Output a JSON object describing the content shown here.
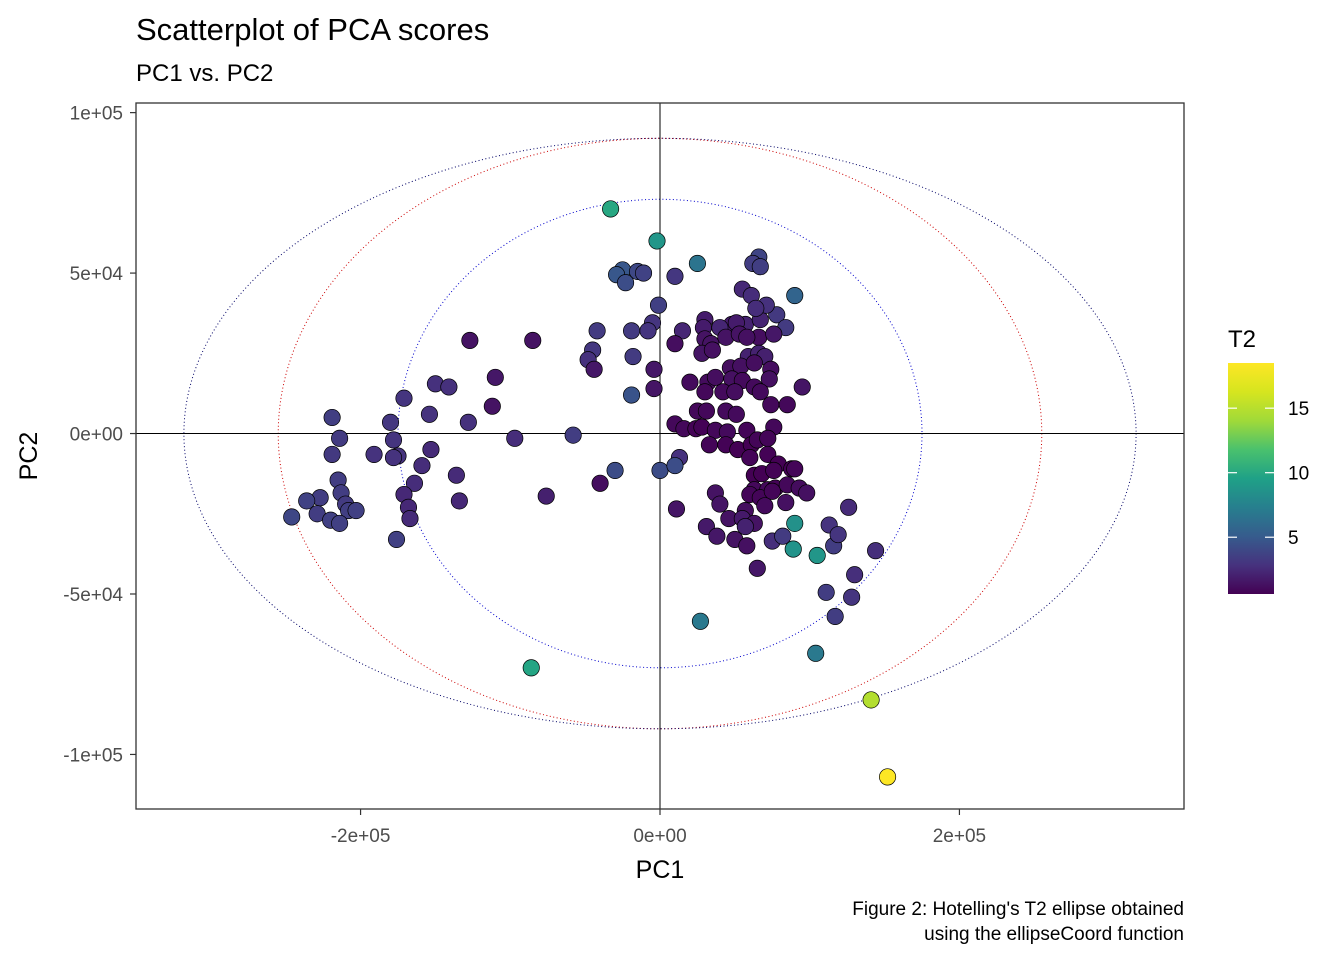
{
  "chart_data": {
    "type": "scatter",
    "title": "Scatterplot of PCA scores",
    "subtitle": "PC1 vs. PC2",
    "xlabel": "PC1",
    "ylabel": "PC2",
    "xlim": [
      -350000,
      350000
    ],
    "ylim": [
      -117000,
      103000
    ],
    "x_ticks": [
      -200000,
      0,
      200000
    ],
    "x_tick_labels": [
      "-2e+05",
      "0e+00",
      "2e+05"
    ],
    "y_ticks": [
      -100000,
      -50000,
      0,
      50000,
      100000
    ],
    "y_tick_labels": [
      "-1e+05",
      "-5e+04",
      "0e+00",
      "5e+04",
      "1e+05"
    ],
    "grid": false,
    "reference_lines": {
      "x": 0,
      "y": 0
    },
    "ellipses": [
      {
        "rx": 175000,
        "ry": 73000,
        "color": "#0000cc"
      },
      {
        "rx": 255000,
        "ry": 92000,
        "color": "#cc0000"
      },
      {
        "rx": 318000,
        "ry": 92000,
        "color": "#000066"
      }
    ],
    "legend": {
      "title": "T2",
      "position": "right",
      "min": 0.6,
      "max": 18.5,
      "ticks": [
        5,
        10,
        15
      ],
      "tick_labels": [
        "5",
        "10",
        "15"
      ]
    },
    "caption": [
      "Figure 2: Hotelling's T2 ellipse obtained",
      "using the ellipseCoord function"
    ],
    "points": [
      [
        -33000,
        70000,
        10.0
      ],
      [
        -2000,
        60000,
        8.8
      ],
      [
        25000,
        53000,
        6.6
      ],
      [
        66000,
        55000,
        3.8
      ],
      [
        62000,
        53000,
        3.4
      ],
      [
        67000,
        52000,
        3.5
      ],
      [
        -25000,
        51000,
        4.8
      ],
      [
        -15000,
        50500,
        4.0
      ],
      [
        -11000,
        50000,
        3.7
      ],
      [
        -29000,
        49500,
        4.8
      ],
      [
        10000,
        49000,
        3.1
      ],
      [
        -23000,
        47000,
        4.3
      ],
      [
        55000,
        45000,
        2.4
      ],
      [
        61000,
        43000,
        2.6
      ],
      [
        90000,
        43000,
        5.6
      ],
      [
        -1000,
        40000,
        3.6
      ],
      [
        -5000,
        34500,
        3.0
      ],
      [
        30000,
        35500,
        1.8
      ],
      [
        48000,
        34000,
        1.8
      ],
      [
        57000,
        34000,
        2.1
      ],
      [
        67000,
        35500,
        2.2
      ],
      [
        78000,
        37000,
        3.2
      ],
      [
        71000,
        40000,
        2.8
      ],
      [
        66000,
        30000,
        1.2
      ],
      [
        -8000,
        32000,
        3.0
      ],
      [
        -19000,
        32000,
        3.3
      ],
      [
        -42000,
        32000,
        3.3
      ],
      [
        15000,
        32000,
        2.3
      ],
      [
        29000,
        33000,
        1.8
      ],
      [
        40000,
        33000,
        2.3
      ],
      [
        51000,
        34500,
        1.8
      ],
      [
        64000,
        39000,
        2.6
      ],
      [
        84000,
        33000,
        3.3
      ],
      [
        30000,
        29500,
        1.4
      ],
      [
        34000,
        28000,
        1.4
      ],
      [
        44000,
        30000,
        1.4
      ],
      [
        53000,
        31000,
        1.4
      ],
      [
        58000,
        30000,
        1.3
      ],
      [
        76000,
        31000,
        1.6
      ],
      [
        10000,
        28000,
        1.2
      ],
      [
        -45000,
        26000,
        3.1
      ],
      [
        -48000,
        23000,
        2.8
      ],
      [
        -127000,
        29000,
        1.4
      ],
      [
        -85000,
        29000,
        1.4
      ],
      [
        28000,
        25000,
        1.5
      ],
      [
        35000,
        26000,
        1.3
      ],
      [
        59000,
        24000,
        2.1
      ],
      [
        66000,
        25000,
        2.1
      ],
      [
        70000,
        24000,
        2.0
      ],
      [
        -18000,
        24000,
        3.3
      ],
      [
        -44000,
        20000,
        1.6
      ],
      [
        -4000,
        20000,
        1.6
      ],
      [
        47000,
        20500,
        1.2
      ],
      [
        54000,
        21000,
        1.3
      ],
      [
        63000,
        22000,
        1.2
      ],
      [
        74000,
        20000,
        1.2
      ],
      [
        -110000,
        17500,
        1.6
      ],
      [
        -150000,
        15500,
        2.8
      ],
      [
        -141000,
        14500,
        2.8
      ],
      [
        -4000,
        14000,
        1.5
      ],
      [
        20000,
        16000,
        1.0
      ],
      [
        32000,
        16000,
        1.1
      ],
      [
        37000,
        17500,
        1.2
      ],
      [
        48000,
        17000,
        1.3
      ],
      [
        55000,
        16500,
        1.0
      ],
      [
        73000,
        17000,
        1.3
      ],
      [
        95000,
        14500,
        1.5
      ],
      [
        -19000,
        12000,
        4.6
      ],
      [
        -171000,
        11000,
        3.0
      ],
      [
        30000,
        13000,
        0.9
      ],
      [
        42000,
        13000,
        1.0
      ],
      [
        50000,
        13000,
        1.2
      ],
      [
        63000,
        14500,
        1.0
      ],
      [
        67000,
        13000,
        1.0
      ],
      [
        74000,
        9000,
        0.9
      ],
      [
        85000,
        9000,
        0.9
      ],
      [
        -112000,
        8500,
        1.4
      ],
      [
        -154000,
        6000,
        2.9
      ],
      [
        25000,
        7000,
        0.9
      ],
      [
        31000,
        7000,
        0.9
      ],
      [
        44000,
        7000,
        1.0
      ],
      [
        51000,
        6000,
        1.0
      ],
      [
        -219000,
        5000,
        3.5
      ],
      [
        -180000,
        3500,
        3.1
      ],
      [
        10000,
        3000,
        0.9
      ],
      [
        16000,
        1500,
        0.9
      ],
      [
        24000,
        1500,
        0.7
      ],
      [
        28000,
        2000,
        0.7
      ],
      [
        37000,
        1000,
        0.9
      ],
      [
        45000,
        500,
        1.0
      ],
      [
        58000,
        1000,
        0.8
      ],
      [
        76000,
        2000,
        0.9
      ],
      [
        -128000,
        3500,
        2.8
      ],
      [
        -97000,
        -1500,
        2.6
      ],
      [
        -58000,
        -500,
        3.4
      ],
      [
        -214000,
        -1500,
        3.3
      ],
      [
        -178000,
        -2000,
        3.0
      ],
      [
        33000,
        -3500,
        0.8
      ],
      [
        44000,
        -3500,
        0.7
      ],
      [
        52000,
        -5000,
        0.6
      ],
      [
        61000,
        -3500,
        0.6
      ],
      [
        65000,
        -2000,
        0.8
      ],
      [
        72000,
        -1500,
        0.8
      ],
      [
        -219000,
        -6500,
        3.2
      ],
      [
        -191000,
        -6500,
        2.9
      ],
      [
        -175000,
        -7000,
        2.9
      ],
      [
        -178000,
        -7500,
        2.9
      ],
      [
        -153000,
        -5000,
        2.5
      ],
      [
        13000,
        -7500,
        2.8
      ],
      [
        60000,
        -7500,
        0.8
      ],
      [
        72000,
        -6500,
        0.7
      ],
      [
        79000,
        -9500,
        0.6
      ],
      [
        88000,
        -11000,
        0.6
      ],
      [
        -159000,
        -10000,
        2.6
      ],
      [
        -136000,
        -13000,
        2.5
      ],
      [
        0,
        -11500,
        4.2
      ],
      [
        -30000,
        -11500,
        4.2
      ],
      [
        10000,
        -10000,
        4.3
      ],
      [
        63000,
        -13000,
        0.6
      ],
      [
        68000,
        -12500,
        0.6
      ],
      [
        76000,
        -11500,
        0.7
      ],
      [
        90000,
        -11000,
        0.8
      ],
      [
        -215000,
        -14500,
        3.4
      ],
      [
        -213000,
        -18500,
        3.4
      ],
      [
        -164000,
        -15500,
        2.6
      ],
      [
        -40000,
        -15500,
        1.2
      ],
      [
        63000,
        -17500,
        0.9
      ],
      [
        72000,
        -17500,
        0.9
      ],
      [
        77000,
        -17000,
        0.7
      ],
      [
        85000,
        -16000,
        0.9
      ],
      [
        93000,
        -17000,
        1.1
      ],
      [
        -171000,
        -19000,
        2.4
      ],
      [
        -76000,
        -19500,
        2.0
      ],
      [
        -227000,
        -20000,
        3.4
      ],
      [
        -210000,
        -22000,
        3.3
      ],
      [
        37000,
        -18500,
        1.4
      ],
      [
        60000,
        -19000,
        0.8
      ],
      [
        67000,
        -20000,
        0.8
      ],
      [
        75000,
        -18000,
        0.8
      ],
      [
        98000,
        -18500,
        1.3
      ],
      [
        -168000,
        -23000,
        2.4
      ],
      [
        -134000,
        -21000,
        2.4
      ],
      [
        -208000,
        -24000,
        3.5
      ],
      [
        -203000,
        -24000,
        3.6
      ],
      [
        -236000,
        -21000,
        3.7
      ],
      [
        -246000,
        -26000,
        3.9
      ],
      [
        -229000,
        -25000,
        3.4
      ],
      [
        -220000,
        -27000,
        3.6
      ],
      [
        -214000,
        -28000,
        3.6
      ],
      [
        -167000,
        -26500,
        2.5
      ],
      [
        40000,
        -22000,
        1.5
      ],
      [
        57000,
        -24000,
        1.2
      ],
      [
        70000,
        -22500,
        1.0
      ],
      [
        84000,
        -21500,
        1.3
      ],
      [
        11000,
        -23500,
        1.5
      ],
      [
        -176000,
        -33000,
        3.6
      ],
      [
        31000,
        -29000,
        1.7
      ],
      [
        46000,
        -26500,
        1.4
      ],
      [
        55000,
        -26500,
        1.7
      ],
      [
        63000,
        -28000,
        1.4
      ],
      [
        57000,
        -29000,
        2.1
      ],
      [
        90000,
        -28000,
        8.5
      ],
      [
        113000,
        -28500,
        2.9
      ],
      [
        126000,
        -23000,
        2.5
      ],
      [
        38000,
        -32000,
        1.6
      ],
      [
        50000,
        -33000,
        1.4
      ],
      [
        58000,
        -35000,
        1.3
      ],
      [
        75000,
        -33500,
        2.7
      ],
      [
        82000,
        -32000,
        3.3
      ],
      [
        89000,
        -36000,
        8.6
      ],
      [
        105000,
        -38000,
        8.8
      ],
      [
        116000,
        -35000,
        3.4
      ],
      [
        119000,
        -31500,
        3.0
      ],
      [
        144000,
        -36500,
        2.7
      ],
      [
        65000,
        -42000,
        1.6
      ],
      [
        130000,
        -44000,
        2.7
      ],
      [
        111000,
        -49500,
        3.4
      ],
      [
        128000,
        -51000,
        3.0
      ],
      [
        117000,
        -57000,
        3.4
      ],
      [
        27000,
        -58500,
        6.9
      ],
      [
        104000,
        -68500,
        6.9
      ],
      [
        -86000,
        -73000,
        9.8
      ],
      [
        141000,
        -83000,
        14.8
      ],
      [
        152000,
        -107000,
        18.5
      ]
    ]
  }
}
